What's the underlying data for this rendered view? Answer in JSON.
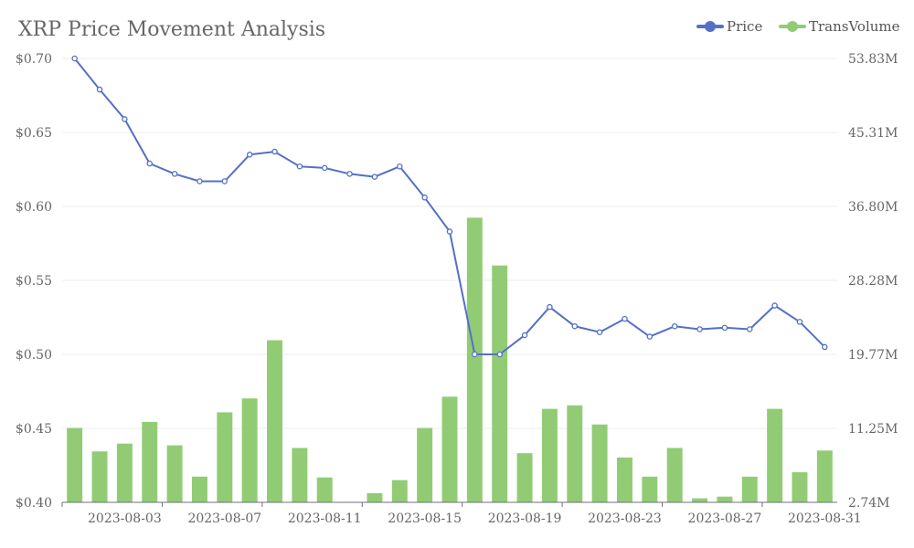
{
  "chart_data": {
    "type": "bar+line",
    "title": "XRP Price Movement Analysis",
    "legend": {
      "position": "top-right",
      "items": [
        "Price",
        "TransVolume"
      ]
    },
    "colors": {
      "price": "#5470c6",
      "volume": "#91cc75",
      "grid": "#eeeeee",
      "axis": "#666666"
    },
    "x": [
      "2023-08-01",
      "2023-08-02",
      "2023-08-03",
      "2023-08-04",
      "2023-08-05",
      "2023-08-06",
      "2023-08-07",
      "2023-08-08",
      "2023-08-09",
      "2023-08-10",
      "2023-08-11",
      "2023-08-12",
      "2023-08-13",
      "2023-08-14",
      "2023-08-15",
      "2023-08-16",
      "2023-08-17",
      "2023-08-18",
      "2023-08-19",
      "2023-08-20",
      "2023-08-21",
      "2023-08-22",
      "2023-08-23",
      "2023-08-24",
      "2023-08-25",
      "2023-08-26",
      "2023-08-27",
      "2023-08-28",
      "2023-08-29",
      "2023-08-30",
      "2023-08-31"
    ],
    "x_tick_labels": [
      "2023-08-03",
      "2023-08-07",
      "2023-08-11",
      "2023-08-15",
      "2023-08-19",
      "2023-08-23",
      "2023-08-27",
      "2023-08-31"
    ],
    "series": [
      {
        "name": "Price",
        "type": "line",
        "axis": "left",
        "values": [
          0.7,
          0.679,
          0.659,
          0.629,
          0.622,
          0.617,
          0.617,
          0.635,
          0.637,
          0.627,
          0.626,
          0.622,
          0.62,
          0.627,
          0.606,
          0.583,
          0.5,
          0.5,
          0.513,
          0.532,
          0.519,
          0.515,
          0.524,
          0.512,
          0.519,
          0.517,
          0.518,
          0.517,
          0.533,
          0.522,
          0.505
        ]
      },
      {
        "name": "TransVolume",
        "type": "bar",
        "axis": "right",
        "unit": "M",
        "values": [
          11.3,
          8.6,
          9.5,
          12.0,
          9.3,
          5.7,
          13.1,
          14.7,
          21.4,
          9.0,
          5.6,
          2.5,
          3.8,
          5.3,
          11.3,
          14.9,
          35.5,
          30.0,
          8.4,
          13.5,
          13.9,
          11.7,
          7.9,
          5.7,
          9.0,
          3.2,
          3.4,
          5.7,
          13.5,
          6.2,
          8.7
        ]
      }
    ],
    "y_left": {
      "min": 0.4,
      "max": 0.7,
      "ticks": [
        "$0.70",
        "$0.65",
        "$0.60",
        "$0.55",
        "$0.50",
        "$0.45",
        "$0.40"
      ]
    },
    "y_right": {
      "min": 2.74,
      "max": 53.83,
      "ticks": [
        "53.83M",
        "45.31M",
        "36.80M",
        "28.28M",
        "19.77M",
        "11.25M",
        "2.74M"
      ]
    }
  }
}
